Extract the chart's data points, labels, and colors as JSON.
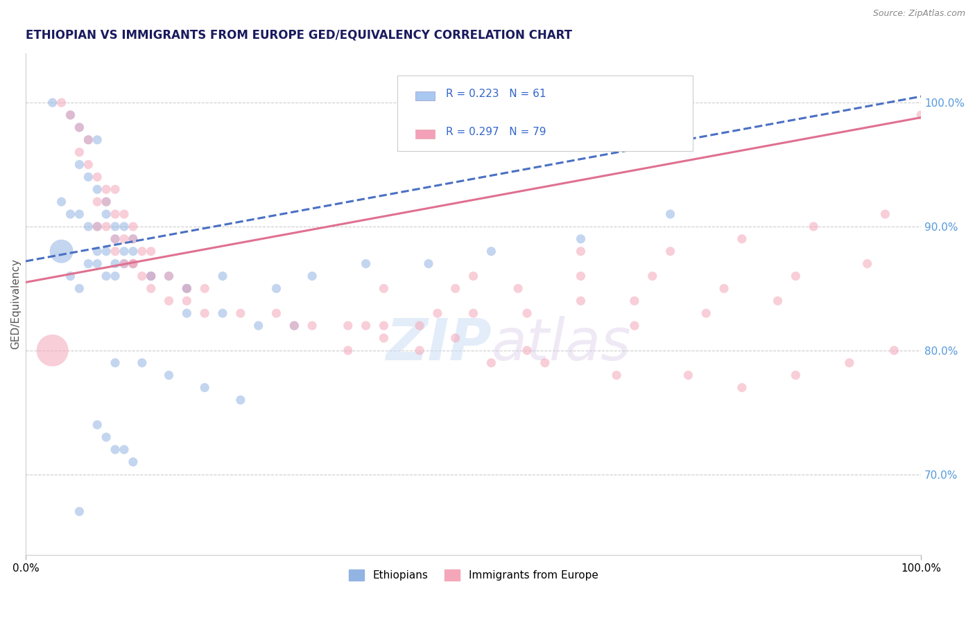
{
  "title": "ETHIOPIAN VS IMMIGRANTS FROM EUROPE GED/EQUIVALENCY CORRELATION CHART",
  "source": "Source: ZipAtlas.com",
  "ylabel": "GED/Equivalency",
  "legend_labels": [
    "Ethiopians",
    "Immigrants from Europe"
  ],
  "legend_r": [
    0.223,
    0.297
  ],
  "legend_n": [
    61,
    79
  ],
  "blue_color": "#92b4e3",
  "pink_color": "#f4a7b9",
  "blue_line_color": "#4a70c4",
  "pink_line_color": "#e07090",
  "title_color": "#1a1a5e",
  "axis_label_color": "#555555",
  "right_tick_color": "#5599dd",
  "watermark_zip": "ZIP",
  "watermark_atlas": "atlas",
  "xlim": [
    0.0,
    1.0
  ],
  "ylim": [
    0.635,
    1.04
  ],
  "right_yticks": [
    0.7,
    0.8,
    0.9,
    1.0
  ],
  "right_yticklabels": [
    "70.0%",
    "80.0%",
    "90.0%",
    "100.0%"
  ],
  "xticklabels": [
    "0.0%",
    "100.0%"
  ],
  "xtick_positions": [
    0.0,
    1.0
  ],
  "blue_trend_x": [
    0.0,
    1.0
  ],
  "blue_trend_y": [
    0.872,
    1.005
  ],
  "pink_trend_x": [
    0.0,
    1.0
  ],
  "pink_trend_y": [
    0.855,
    0.988
  ],
  "grid_color": "#cccccc",
  "legend_box_colors": [
    "#a8c8f0",
    "#f4a0b8"
  ],
  "legend_r_color": "#3366cc",
  "blue_scatter_x": [
    0.03,
    0.05,
    0.06,
    0.07,
    0.08,
    0.06,
    0.07,
    0.08,
    0.09,
    0.04,
    0.05,
    0.06,
    0.07,
    0.08,
    0.09,
    0.1,
    0.11,
    0.12,
    0.1,
    0.11,
    0.12,
    0.08,
    0.09,
    0.1,
    0.11,
    0.07,
    0.08,
    0.09,
    0.1,
    0.12,
    0.14,
    0.16,
    0.18,
    0.05,
    0.06,
    0.04,
    0.14,
    0.18,
    0.22,
    0.28,
    0.32,
    0.38,
    0.45,
    0.52,
    0.62,
    0.72,
    0.18,
    0.22,
    0.26,
    0.3,
    0.1,
    0.13,
    0.16,
    0.2,
    0.24,
    0.08,
    0.09,
    0.1,
    0.11,
    0.12,
    0.06
  ],
  "blue_scatter_y": [
    1.0,
    0.99,
    0.98,
    0.97,
    0.97,
    0.95,
    0.94,
    0.93,
    0.92,
    0.92,
    0.91,
    0.91,
    0.9,
    0.9,
    0.91,
    0.9,
    0.9,
    0.89,
    0.89,
    0.88,
    0.88,
    0.88,
    0.88,
    0.87,
    0.87,
    0.87,
    0.87,
    0.86,
    0.86,
    0.87,
    0.86,
    0.86,
    0.85,
    0.86,
    0.85,
    0.88,
    0.86,
    0.85,
    0.86,
    0.85,
    0.86,
    0.87,
    0.87,
    0.88,
    0.89,
    0.91,
    0.83,
    0.83,
    0.82,
    0.82,
    0.79,
    0.79,
    0.78,
    0.77,
    0.76,
    0.74,
    0.73,
    0.72,
    0.72,
    0.71,
    0.67
  ],
  "blue_scatter_size": [
    18,
    18,
    18,
    18,
    18,
    18,
    18,
    18,
    18,
    18,
    18,
    18,
    18,
    18,
    18,
    18,
    18,
    18,
    18,
    18,
    18,
    18,
    18,
    18,
    18,
    18,
    18,
    18,
    18,
    18,
    18,
    18,
    18,
    18,
    18,
    120,
    18,
    18,
    18,
    18,
    18,
    18,
    18,
    18,
    18,
    18,
    18,
    18,
    18,
    18,
    18,
    18,
    18,
    18,
    18,
    18,
    18,
    18,
    18,
    18,
    18
  ],
  "pink_scatter_x": [
    0.04,
    0.05,
    0.06,
    0.07,
    0.06,
    0.07,
    0.08,
    0.09,
    0.1,
    0.08,
    0.09,
    0.1,
    0.11,
    0.12,
    0.08,
    0.09,
    0.1,
    0.11,
    0.12,
    0.13,
    0.14,
    0.1,
    0.11,
    0.12,
    0.13,
    0.12,
    0.14,
    0.16,
    0.18,
    0.2,
    0.14,
    0.16,
    0.18,
    0.2,
    0.24,
    0.28,
    0.32,
    0.36,
    0.4,
    0.44,
    0.5,
    0.56,
    0.62,
    0.68,
    0.4,
    0.48,
    0.55,
    0.62,
    0.7,
    0.4,
    0.48,
    0.56,
    0.36,
    0.44,
    0.52,
    0.58,
    0.66,
    0.74,
    0.8,
    0.86,
    0.92,
    0.97,
    1.0,
    0.03,
    0.5,
    0.62,
    0.3,
    0.38,
    0.46,
    0.72,
    0.8,
    0.88,
    0.96,
    0.78,
    0.86,
    0.94,
    0.68,
    0.76,
    0.84
  ],
  "pink_scatter_y": [
    1.0,
    0.99,
    0.98,
    0.97,
    0.96,
    0.95,
    0.94,
    0.93,
    0.93,
    0.92,
    0.92,
    0.91,
    0.91,
    0.9,
    0.9,
    0.9,
    0.89,
    0.89,
    0.89,
    0.88,
    0.88,
    0.88,
    0.87,
    0.87,
    0.86,
    0.87,
    0.86,
    0.86,
    0.85,
    0.85,
    0.85,
    0.84,
    0.84,
    0.83,
    0.83,
    0.83,
    0.82,
    0.82,
    0.82,
    0.82,
    0.83,
    0.83,
    0.84,
    0.84,
    0.85,
    0.85,
    0.85,
    0.86,
    0.86,
    0.81,
    0.81,
    0.8,
    0.8,
    0.8,
    0.79,
    0.79,
    0.78,
    0.78,
    0.77,
    0.78,
    0.79,
    0.8,
    0.99,
    0.8,
    0.86,
    0.88,
    0.82,
    0.82,
    0.83,
    0.88,
    0.89,
    0.9,
    0.91,
    0.85,
    0.86,
    0.87,
    0.82,
    0.83,
    0.84
  ],
  "pink_scatter_size": [
    18,
    18,
    18,
    18,
    18,
    18,
    18,
    18,
    18,
    18,
    18,
    18,
    18,
    18,
    18,
    18,
    18,
    18,
    18,
    18,
    18,
    18,
    18,
    18,
    18,
    18,
    18,
    18,
    18,
    18,
    18,
    18,
    18,
    18,
    18,
    18,
    18,
    18,
    18,
    18,
    18,
    18,
    18,
    18,
    18,
    18,
    18,
    18,
    18,
    18,
    18,
    18,
    18,
    18,
    18,
    18,
    18,
    18,
    18,
    18,
    18,
    18,
    18,
    220,
    18,
    18,
    18,
    18,
    18,
    18,
    18,
    18,
    18,
    18,
    18,
    18,
    18,
    18,
    18
  ]
}
